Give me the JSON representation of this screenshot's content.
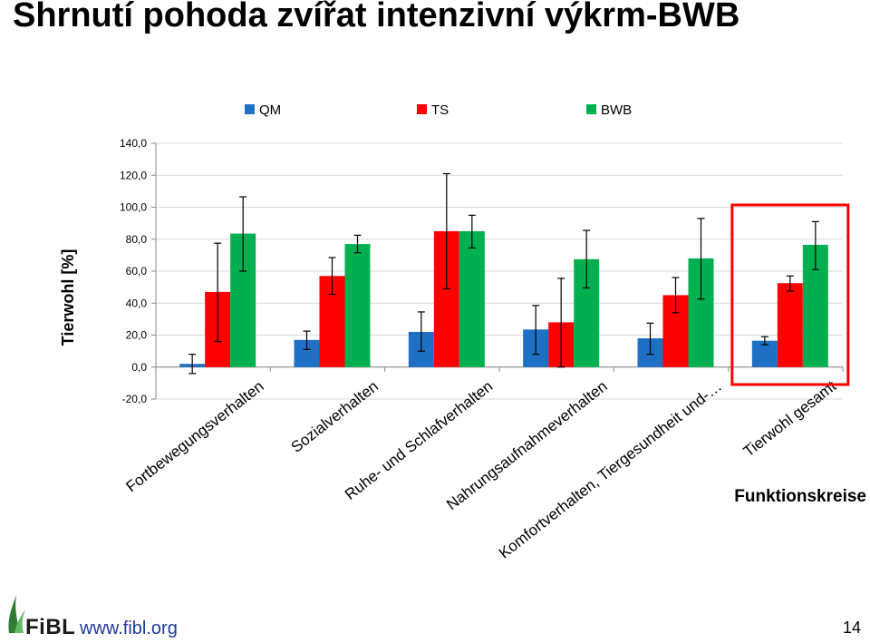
{
  "title": "Shrnutí pohoda zvířat  intenzivní výkrm-BWB",
  "footer": {
    "logo_text": "FiBL",
    "website": "www.fibl.org",
    "page_number": "14"
  },
  "chart_data": {
    "type": "bar",
    "ylabel": "Tierwohl [%]",
    "xlabel": "Funktionskreise",
    "ylim": [
      -20,
      140
    ],
    "yticks": [
      "-20,0",
      "0,0",
      "20,0",
      "40,0",
      "60,0",
      "80,0",
      "100,0",
      "120,0",
      "140,0"
    ],
    "ytick_values": [
      -20,
      0,
      20,
      40,
      60,
      80,
      100,
      120,
      140
    ],
    "grid": true,
    "legend_position": "top",
    "categories": [
      "Fortbewegungsverhalten",
      "Sozialverhalten",
      "Ruhe- und Schlafverhalten",
      "Nahrungsaufnahmeverhalten",
      "Komfortverhalten, Tiergesundheit und-…",
      "Tierwohl gesamt"
    ],
    "series": [
      {
        "name": "QM",
        "color": "#1f6fc5",
        "values": [
          2,
          17,
          22,
          23.5,
          18,
          16.5
        ],
        "error_low": [
          -4,
          11,
          10,
          8,
          8,
          14
        ],
        "error_high": [
          8,
          22.5,
          34.5,
          38.5,
          27.5,
          19
        ]
      },
      {
        "name": "TS",
        "color": "#ff0000",
        "values": [
          47,
          57,
          85,
          28,
          45,
          52.5
        ],
        "error_low": [
          16,
          45.5,
          49,
          0,
          34,
          47.5
        ],
        "error_high": [
          77.5,
          68.5,
          121,
          55.5,
          56,
          57
        ]
      },
      {
        "name": "BWB",
        "color": "#00b050",
        "values": [
          83.5,
          77,
          85,
          67.5,
          68,
          76.5
        ],
        "error_low": [
          60,
          71.5,
          74.5,
          49.5,
          42.5,
          61
        ],
        "error_high": [
          106.5,
          82.5,
          95,
          85.5,
          93,
          91
        ]
      }
    ],
    "highlight": {
      "category_index": 5,
      "color": "#ff0000"
    }
  }
}
